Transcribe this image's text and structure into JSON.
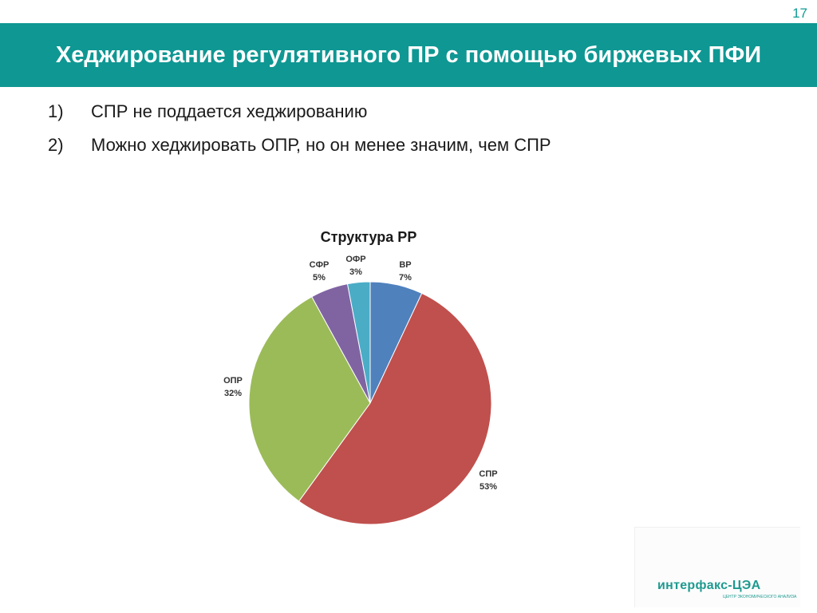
{
  "slide": {
    "number": "17",
    "title": "Хеджирование регулятивного ПР с помощью биржевых ПФИ"
  },
  "bullets": [
    {
      "num": "1)",
      "text": "СПР не поддается хеджированию"
    },
    {
      "num": "2)",
      "text": "Можно хеджировать ОПР, но он менее значим, чем СПР"
    }
  ],
  "chart_data": {
    "type": "pie",
    "title": "Структура РР",
    "slices": [
      {
        "label": "ВР",
        "value": 7,
        "value_label": "7%",
        "color": "#4f81bd"
      },
      {
        "label": "СПР",
        "value": 53,
        "value_label": "53%",
        "color": "#c0504d"
      },
      {
        "label": "ОПР",
        "value": 32,
        "value_label": "32%",
        "color": "#9bbb59"
      },
      {
        "label": "СФР",
        "value": 5,
        "value_label": "5%",
        "color": "#8064a2"
      },
      {
        "label": "ОФР",
        "value": 3,
        "value_label": "3%",
        "color": "#4bacc6"
      }
    ],
    "legend": "none"
  },
  "logo": {
    "text": "интерфакс-ЦЭА",
    "subtext": "ЦЕНТР ЭКОНОМИЧЕСКОГО АНАЛИЗА"
  }
}
